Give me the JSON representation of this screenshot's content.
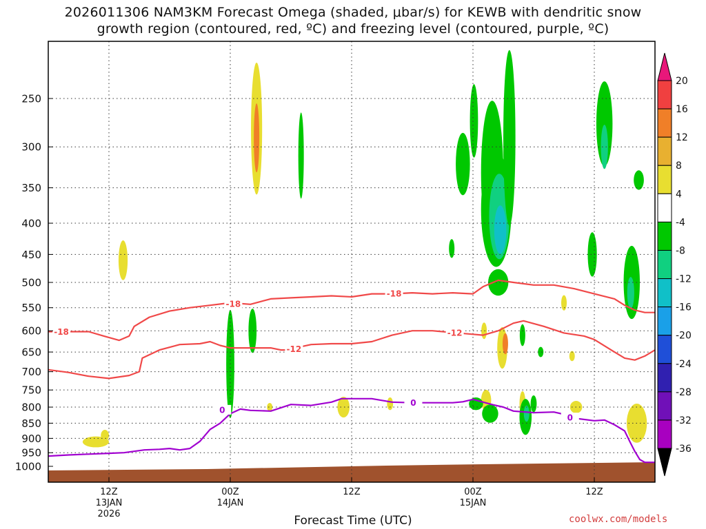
{
  "title": {
    "line1": "2026011306 NAM3KM Forecast Omega (shaded, μbar/s) for KEWB with dendritic snow",
    "line2": "growth region (contoured, red, ºC) and freezing level (contoured, purple, ºC)"
  },
  "credit": "coolwx.com/models",
  "chart_data": {
    "type": "heatmap",
    "title": "2026011306 NAM3KM Forecast Omega (shaded, μbar/s) for KEWB with dendritic snow growth region (contoured, red, ºC) and freezing level (contoured, purple, ºC)",
    "xlabel": "Forecast Time (UTC)",
    "ylabel": "",
    "x_range_hours": [
      0,
      60
    ],
    "ylim": [
      1000,
      200
    ],
    "y_ticks": [
      250,
      300,
      350,
      400,
      450,
      500,
      550,
      600,
      650,
      700,
      750,
      800,
      850,
      900,
      950,
      1000
    ],
    "x_ticks": [
      {
        "hour": 6,
        "label": "12Z",
        "date": "13JAN",
        "year": "2026"
      },
      {
        "hour": 18,
        "label": "00Z",
        "date": "14JAN",
        "year": ""
      },
      {
        "hour": 30,
        "label": "12Z",
        "date": "",
        "year": ""
      },
      {
        "hour": 42,
        "label": "00Z",
        "date": "15JAN",
        "year": ""
      },
      {
        "hour": 54,
        "label": "12Z",
        "date": "",
        "year": ""
      }
    ],
    "grid": true,
    "colorbar": {
      "levels": [
        -36,
        -32,
        -28,
        -24,
        -20,
        -16,
        -12,
        -8,
        -4,
        4,
        8,
        12,
        16,
        20
      ],
      "labels": [
        "20",
        "16",
        "12",
        "8",
        "4",
        "-4",
        "-8",
        "-12",
        "-16",
        "-20",
        "-24",
        "-28",
        "-32",
        "-36"
      ],
      "colors_top_to_bottom": [
        "#e8177a",
        "#f04040",
        "#f07f28",
        "#e8b030",
        "#e8de30",
        "#ffffff",
        "#00c800",
        "#10d080",
        "#10c0c8",
        "#1aa0e8",
        "#1f4fd8",
        "#3020b0",
        "#7010b8",
        "#a800c0",
        "#a8a8a8",
        "#000000"
      ]
    },
    "contours": [
      {
        "name": "-18",
        "color": "#f04848",
        "points": [
          [
            0,
            602
          ],
          [
            4,
            602
          ],
          [
            5.5,
            612
          ],
          [
            7,
            622
          ],
          [
            8,
            612
          ],
          [
            8.5,
            590
          ],
          [
            10,
            570
          ],
          [
            12,
            557
          ],
          [
            14,
            550
          ],
          [
            16,
            545
          ],
          [
            18,
            540
          ],
          [
            20,
            543
          ],
          [
            22,
            532
          ],
          [
            24,
            530
          ],
          [
            26,
            528
          ],
          [
            28,
            526
          ],
          [
            30,
            528
          ],
          [
            32,
            522
          ],
          [
            34,
            522
          ],
          [
            36,
            520
          ],
          [
            38,
            522
          ],
          [
            40,
            520
          ],
          [
            42,
            522
          ],
          [
            43,
            508
          ],
          [
            44.5,
            496
          ],
          [
            46,
            500
          ],
          [
            48,
            505
          ],
          [
            50,
            505
          ],
          [
            52,
            512
          ],
          [
            54,
            522
          ],
          [
            56,
            532
          ],
          [
            57,
            545
          ],
          [
            58,
            555
          ],
          [
            59,
            560
          ],
          [
            60,
            560
          ]
        ],
        "labels": [
          {
            "hour": 1.3,
            "p": 602,
            "text": "-18"
          },
          {
            "hour": 18.3,
            "p": 542,
            "text": "-18"
          },
          {
            "hour": 34.2,
            "p": 521,
            "text": "-18"
          }
        ]
      },
      {
        "name": "-12",
        "color": "#f04848",
        "points": [
          [
            0,
            695
          ],
          [
            2,
            702
          ],
          [
            4,
            712
          ],
          [
            6,
            718
          ],
          [
            8,
            710
          ],
          [
            9,
            700
          ],
          [
            9.3,
            665
          ],
          [
            11,
            645
          ],
          [
            13,
            632
          ],
          [
            15,
            630
          ],
          [
            16,
            625
          ],
          [
            17,
            634
          ],
          [
            18,
            640
          ],
          [
            20,
            640
          ],
          [
            22,
            640
          ],
          [
            23,
            645
          ],
          [
            24,
            645
          ],
          [
            25,
            637
          ],
          [
            26,
            632
          ],
          [
            28,
            630
          ],
          [
            30,
            630
          ],
          [
            32,
            625
          ],
          [
            34,
            610
          ],
          [
            36,
            600
          ],
          [
            38,
            600
          ],
          [
            40,
            604
          ],
          [
            42,
            608
          ],
          [
            43,
            610
          ],
          [
            44.5,
            600
          ],
          [
            46,
            583
          ],
          [
            47,
            578
          ],
          [
            49,
            590
          ],
          [
            51,
            605
          ],
          [
            53,
            612
          ],
          [
            54,
            620
          ],
          [
            55,
            635
          ],
          [
            56,
            650
          ],
          [
            57,
            665
          ],
          [
            58,
            670
          ],
          [
            59,
            660
          ],
          [
            60,
            645
          ]
        ],
        "labels": [
          {
            "hour": 24.3,
            "p": 642,
            "text": "-12"
          },
          {
            "hour": 40.2,
            "p": 604,
            "text": "-12"
          }
        ]
      },
      {
        "name": "0",
        "color": "#a000d0",
        "points": [
          [
            0,
            962
          ],
          [
            2,
            958
          ],
          [
            4,
            955
          ],
          [
            6,
            952
          ],
          [
            7.5,
            950
          ],
          [
            8.5,
            945
          ],
          [
            9.5,
            940
          ],
          [
            11,
            938
          ],
          [
            12,
            935
          ],
          [
            13,
            940
          ],
          [
            14,
            935
          ],
          [
            15,
            910
          ],
          [
            16,
            870
          ],
          [
            17,
            850
          ],
          [
            18,
            820
          ],
          [
            19,
            806
          ],
          [
            20,
            810
          ],
          [
            22,
            812
          ],
          [
            24,
            792
          ],
          [
            26,
            795
          ],
          [
            28,
            785
          ],
          [
            29,
            775
          ],
          [
            30,
            775
          ],
          [
            32,
            775
          ],
          [
            34,
            785
          ],
          [
            36,
            787
          ],
          [
            38,
            787
          ],
          [
            40,
            787
          ],
          [
            41,
            784
          ],
          [
            42,
            777
          ],
          [
            43,
            785
          ],
          [
            44,
            793
          ],
          [
            45,
            800
          ],
          [
            46,
            812
          ],
          [
            48,
            817
          ],
          [
            50,
            815
          ],
          [
            51,
            822
          ],
          [
            52,
            834
          ],
          [
            54,
            842
          ],
          [
            55,
            840
          ],
          [
            56,
            855
          ],
          [
            57,
            875
          ],
          [
            57.5,
            910
          ],
          [
            58,
            945
          ],
          [
            58.5,
            975
          ],
          [
            59,
            985
          ],
          [
            60,
            985
          ]
        ],
        "labels": [
          {
            "hour": 17.2,
            "p": 808,
            "text": "0"
          },
          {
            "hour": 36.1,
            "p": 787,
            "text": "0"
          },
          {
            "hour": 51.6,
            "p": 832,
            "text": "0"
          }
        ]
      }
    ]
  }
}
